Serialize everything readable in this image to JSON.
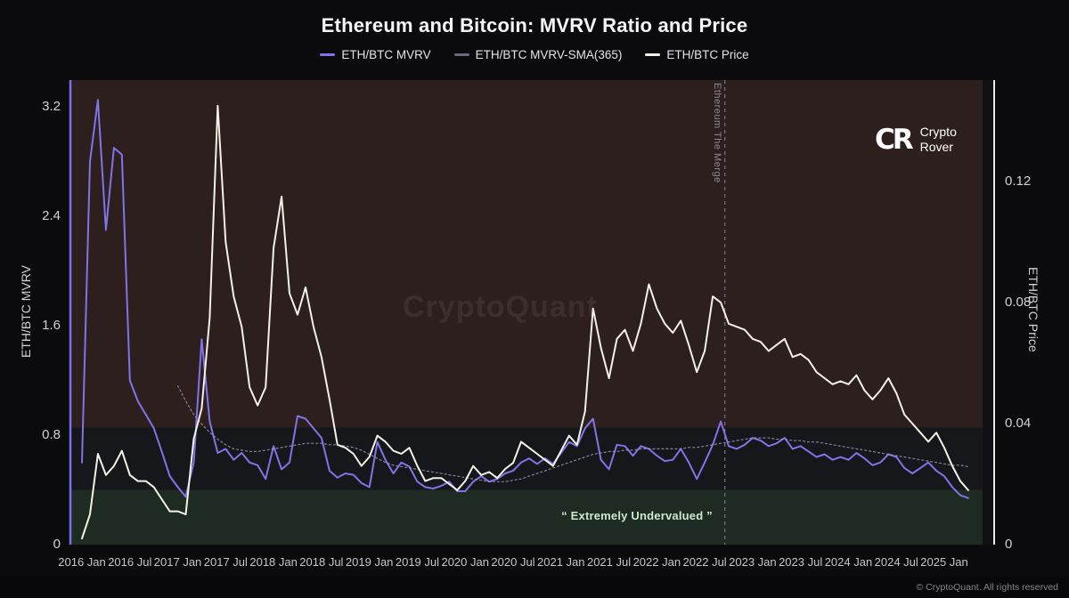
{
  "title": "Ethereum and Bitcoin: MVRV Ratio and Price",
  "legend": [
    {
      "label": "ETH/BTC MVRV",
      "color": "#8173e8"
    },
    {
      "label": "ETH/BTC MVRV-SMA(365)",
      "color": "#6d677f"
    },
    {
      "label": "ETH/BTC Price",
      "color": "#f4f1e8"
    }
  ],
  "watermark": "CryptoQuant",
  "logo": {
    "monogram": "CR",
    "line1": "Crypto",
    "line2": "Rover"
  },
  "annotations": {
    "merge_label": "Ethereum The Merge",
    "undervalued_label": "“ Extremely Undervalued ”"
  },
  "footer": {
    "copyright": "© CryptoQuant. All rights reserved"
  },
  "left_axis": {
    "title": "ETH/BTC MVRV",
    "tick_labels": [
      "0",
      "0.8",
      "1.6",
      "2.4",
      "3.2"
    ],
    "tick_values": [
      0,
      0.8,
      1.6,
      2.4,
      3.2
    ],
    "max": 3.395,
    "axis_color": "#7b6cf0"
  },
  "right_axis": {
    "title": "ETH/BTC Price",
    "tick_labels": [
      "0",
      "0.04",
      "0.08",
      "0.12"
    ],
    "tick_values": [
      0,
      0.04,
      0.08,
      0.12
    ],
    "max": 0.1535,
    "axis_color": "#e9e9ea"
  },
  "x_axis": {
    "labels": [
      "2016 Jan",
      "2016 Jul",
      "2017 Jan",
      "2017 Jul",
      "2018 Jan",
      "2018 Jul",
      "2019 Jan",
      "2019 Jul",
      "2020 Jan",
      "2020 Jul",
      "2021 Jan",
      "2021 Jul",
      "2022 Jan",
      "2022 Jul",
      "2023 Jan",
      "2023 Jul",
      "2024 Jan",
      "2024 Jul",
      "2025 Jan"
    ]
  },
  "chart_data": {
    "type": "line",
    "title": "Ethereum and Bitcoin: MVRV Ratio and Price",
    "x_unit": "month",
    "x_start": "2016-01",
    "x_end": "2025-04",
    "legend_position": "top",
    "grid": false,
    "left_ylim": [
      0,
      3.395
    ],
    "right_ylim": [
      0,
      0.1535
    ],
    "zones": [
      {
        "label": "overvalued-zone",
        "axis": "left",
        "from": 0.855,
        "to": 3.395,
        "color": "#2c1f1d"
      },
      {
        "label": "neutral-zone",
        "axis": "left",
        "from": 0.4,
        "to": 0.855,
        "color": "#16171a"
      },
      {
        "label": "extremely-undervalued-zone",
        "axis": "left",
        "from": 0,
        "to": 0.4,
        "color": "#1d2b22"
      }
    ],
    "event_line": {
      "label": "Ethereum The Merge",
      "x_year": 2022.71,
      "color": "#8a8a92"
    },
    "series": [
      {
        "name": "ETH/BTC MVRV",
        "axis": "left",
        "color": "#8173e8",
        "width": 2,
        "dash": null,
        "values": [
          0.6,
          2.8,
          3.25,
          2.3,
          2.9,
          2.85,
          1.2,
          1.05,
          0.95,
          0.85,
          0.68,
          0.5,
          0.42,
          0.35,
          0.6,
          1.5,
          0.9,
          0.67,
          0.7,
          0.62,
          0.67,
          0.6,
          0.58,
          0.48,
          0.72,
          0.55,
          0.6,
          0.94,
          0.92,
          0.85,
          0.78,
          0.54,
          0.49,
          0.52,
          0.51,
          0.45,
          0.42,
          0.75,
          0.62,
          0.52,
          0.6,
          0.57,
          0.46,
          0.42,
          0.41,
          0.43,
          0.46,
          0.39,
          0.39,
          0.46,
          0.5,
          0.46,
          0.48,
          0.52,
          0.54,
          0.6,
          0.63,
          0.59,
          0.63,
          0.59,
          0.67,
          0.75,
          0.72,
          0.85,
          0.92,
          0.62,
          0.55,
          0.73,
          0.72,
          0.65,
          0.72,
          0.7,
          0.65,
          0.61,
          0.62,
          0.7,
          0.6,
          0.48,
          0.6,
          0.73,
          0.9,
          0.72,
          0.7,
          0.73,
          0.78,
          0.76,
          0.72,
          0.74,
          0.78,
          0.7,
          0.72,
          0.68,
          0.64,
          0.66,
          0.62,
          0.64,
          0.62,
          0.67,
          0.63,
          0.58,
          0.6,
          0.66,
          0.64,
          0.56,
          0.52,
          0.56,
          0.6,
          0.54,
          0.5,
          0.42,
          0.36,
          0.34
        ]
      },
      {
        "name": "ETH/BTC MVRV-SMA(365)",
        "axis": "left",
        "color": "#a49cc2",
        "width": 1.2,
        "dash": "2 3",
        "values": [
          null,
          null,
          null,
          null,
          null,
          null,
          null,
          null,
          null,
          null,
          null,
          null,
          1.16,
          1.05,
          0.95,
          0.88,
          0.82,
          0.77,
          0.73,
          0.7,
          0.69,
          0.68,
          0.68,
          0.69,
          0.7,
          0.71,
          0.72,
          0.73,
          0.74,
          0.74,
          0.74,
          0.73,
          0.73,
          0.72,
          0.71,
          0.69,
          0.66,
          0.63,
          0.6,
          0.58,
          0.57,
          0.56,
          0.55,
          0.54,
          0.53,
          0.52,
          0.51,
          0.5,
          0.49,
          0.48,
          0.47,
          0.46,
          0.46,
          0.46,
          0.47,
          0.48,
          0.5,
          0.52,
          0.54,
          0.56,
          0.58,
          0.6,
          0.62,
          0.64,
          0.66,
          0.67,
          0.68,
          0.68,
          0.69,
          0.69,
          0.7,
          0.7,
          0.7,
          0.7,
          0.7,
          0.7,
          0.71,
          0.71,
          0.72,
          0.73,
          0.74,
          0.75,
          0.76,
          0.77,
          0.78,
          0.78,
          0.78,
          0.77,
          0.77,
          0.76,
          0.76,
          0.75,
          0.75,
          0.74,
          0.73,
          0.72,
          0.71,
          0.7,
          0.69,
          0.68,
          0.67,
          0.66,
          0.65,
          0.64,
          0.63,
          0.62,
          0.61,
          0.6,
          0.59,
          0.58,
          0.58,
          0.57
        ]
      },
      {
        "name": "ETH/BTC Price",
        "axis": "right",
        "color": "#f4f1e8",
        "width": 2,
        "dash": null,
        "values": [
          0.002,
          0.01,
          0.03,
          0.023,
          0.026,
          0.031,
          0.023,
          0.021,
          0.021,
          0.019,
          0.015,
          0.011,
          0.011,
          0.01,
          0.035,
          0.045,
          0.075,
          0.145,
          0.1,
          0.082,
          0.072,
          0.052,
          0.046,
          0.052,
          0.098,
          0.115,
          0.083,
          0.076,
          0.085,
          0.072,
          0.062,
          0.048,
          0.033,
          0.032,
          0.03,
          0.026,
          0.029,
          0.036,
          0.034,
          0.031,
          0.03,
          0.032,
          0.026,
          0.021,
          0.022,
          0.022,
          0.02,
          0.018,
          0.021,
          0.026,
          0.023,
          0.024,
          0.022,
          0.025,
          0.027,
          0.034,
          0.032,
          0.03,
          0.028,
          0.026,
          0.031,
          0.036,
          0.033,
          0.044,
          0.078,
          0.065,
          0.055,
          0.068,
          0.071,
          0.064,
          0.073,
          0.086,
          0.078,
          0.073,
          0.07,
          0.074,
          0.066,
          0.057,
          0.064,
          0.082,
          0.08,
          0.073,
          0.072,
          0.071,
          0.068,
          0.067,
          0.064,
          0.066,
          0.068,
          0.062,
          0.063,
          0.061,
          0.057,
          0.055,
          0.053,
          0.054,
          0.053,
          0.056,
          0.051,
          0.048,
          0.051,
          0.055,
          0.05,
          0.043,
          0.04,
          0.037,
          0.034,
          0.037,
          0.032,
          0.026,
          0.021,
          0.018
        ]
      }
    ]
  }
}
